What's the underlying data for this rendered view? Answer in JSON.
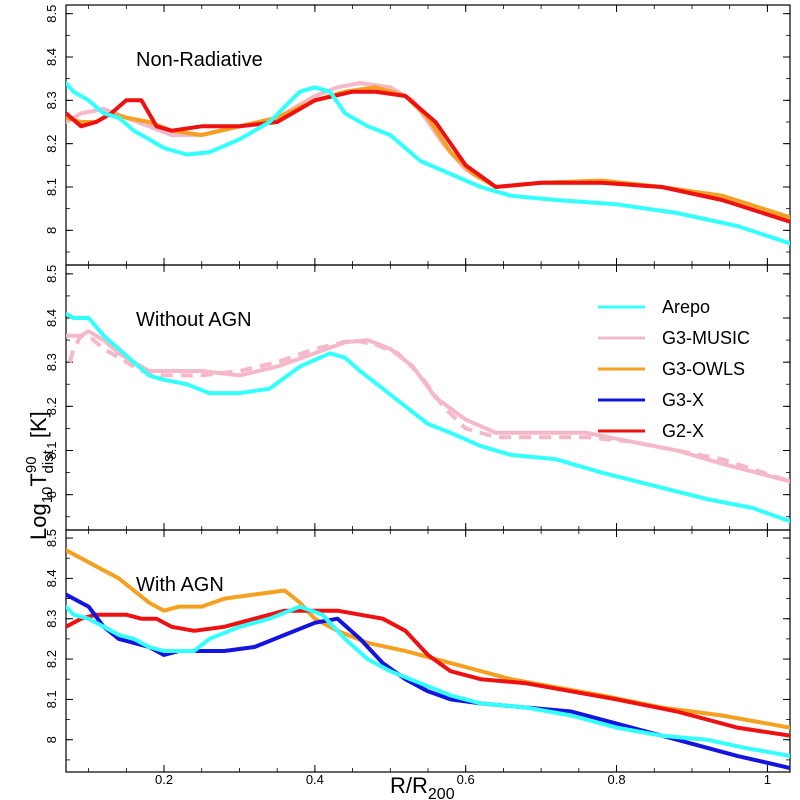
{
  "figure": {
    "xlabel_main": "R/R",
    "xlabel_sub": "200",
    "ylabel_main": "Log",
    "ylabel_sub1": "10",
    "ylabel_T": "T",
    "ylabel_sup": "90",
    "ylabel_sub2": "dist",
    "ylabel_unit": "[K]"
  },
  "legend": {
    "items": [
      {
        "name": "Arepo",
        "color": "#33ffff"
      },
      {
        "name": "G3-MUSIC",
        "color": "#f5b8c8"
      },
      {
        "name": "G3-OWLS",
        "color": "#f5a020"
      },
      {
        "name": "G3-X",
        "color": "#1414e0"
      },
      {
        "name": "G2-X",
        "color": "#ee1111"
      }
    ]
  },
  "chart_data": [
    {
      "type": "line",
      "title": "Non-Radiative",
      "xlabel": "R/R200",
      "ylabel": "Log10 T90dist [K]",
      "xlim": [
        0.07,
        1.03
      ],
      "ylim": [
        7.92,
        8.52
      ],
      "xticks": [
        0.2,
        0.4,
        0.6,
        0.8,
        1
      ],
      "xtick_labels": [
        "0.2",
        "0.4",
        "0.6",
        "0.8",
        "1"
      ],
      "yticks": [
        8,
        8.1,
        8.2,
        8.3,
        8.4,
        8.5
      ],
      "ytick_labels": [
        "8",
        "8.1",
        "8.2",
        "8.3",
        "8.4",
        "8.5"
      ],
      "series": [
        {
          "name": "G3-MUSIC",
          "color": "#f5b8c8",
          "x": [
            0.07,
            0.09,
            0.12,
            0.15,
            0.18,
            0.21,
            0.25,
            0.3,
            0.35,
            0.4,
            0.43,
            0.46,
            0.5,
            0.53,
            0.57,
            0.6,
            0.64,
            0.7,
            0.78,
            0.86,
            0.94,
            1.03
          ],
          "y": [
            8.25,
            8.27,
            8.28,
            8.26,
            8.24,
            8.22,
            8.22,
            8.24,
            8.26,
            8.31,
            8.33,
            8.34,
            8.33,
            8.3,
            8.2,
            8.14,
            8.1,
            8.11,
            8.11,
            8.1,
            8.07,
            8.03
          ]
        },
        {
          "name": "G3-OWLS",
          "color": "#f5a020",
          "x": [
            0.07,
            0.09,
            0.11,
            0.13,
            0.15,
            0.18,
            0.21,
            0.25,
            0.3,
            0.35,
            0.4,
            0.44,
            0.48,
            0.52,
            0.55,
            0.58,
            0.61,
            0.64,
            0.7,
            0.78,
            0.86,
            0.94,
            1.03
          ],
          "y": [
            8.26,
            8.25,
            8.25,
            8.27,
            8.26,
            8.25,
            8.23,
            8.22,
            8.24,
            8.26,
            8.3,
            8.32,
            8.33,
            8.31,
            8.26,
            8.18,
            8.13,
            8.1,
            8.11,
            8.115,
            8.1,
            8.08,
            8.03
          ]
        },
        {
          "name": "G2-X",
          "color": "#ee1111",
          "x": [
            0.07,
            0.09,
            0.11,
            0.13,
            0.15,
            0.17,
            0.19,
            0.21,
            0.25,
            0.3,
            0.35,
            0.4,
            0.45,
            0.48,
            0.52,
            0.56,
            0.6,
            0.64,
            0.7,
            0.78,
            0.86,
            0.94,
            1.03
          ],
          "y": [
            8.27,
            8.24,
            8.25,
            8.27,
            8.3,
            8.3,
            8.24,
            8.23,
            8.24,
            8.24,
            8.25,
            8.3,
            8.32,
            8.32,
            8.31,
            8.25,
            8.15,
            8.1,
            8.11,
            8.11,
            8.1,
            8.07,
            8.02
          ]
        },
        {
          "name": "Arepo",
          "color": "#33ffff",
          "x": [
            0.07,
            0.08,
            0.1,
            0.12,
            0.14,
            0.16,
            0.18,
            0.2,
            0.23,
            0.26,
            0.3,
            0.34,
            0.38,
            0.4,
            0.42,
            0.44,
            0.47,
            0.5,
            0.54,
            0.58,
            0.62,
            0.66,
            0.72,
            0.8,
            0.88,
            0.96,
            1.03
          ],
          "y": [
            8.34,
            8.32,
            8.3,
            8.27,
            8.26,
            8.23,
            8.21,
            8.19,
            8.175,
            8.18,
            8.21,
            8.25,
            8.32,
            8.33,
            8.32,
            8.27,
            8.24,
            8.22,
            8.16,
            8.13,
            8.1,
            8.08,
            8.07,
            8.06,
            8.04,
            8.01,
            7.97
          ]
        }
      ]
    },
    {
      "type": "line",
      "title": "Without AGN",
      "xlabel": "R/R200",
      "ylabel": "Log10 T90dist [K]",
      "xlim": [
        0.07,
        1.03
      ],
      "ylim": [
        7.92,
        8.52
      ],
      "xticks": [
        0.2,
        0.4,
        0.6,
        0.8,
        1
      ],
      "xtick_labels": [
        "0.2",
        "0.4",
        "0.6",
        "0.8",
        "1"
      ],
      "yticks": [
        8,
        8.1,
        8.2,
        8.3,
        8.4,
        8.5
      ],
      "ytick_labels": [
        "8",
        "8.1",
        "8.2",
        "8.3",
        "8.4",
        "8.5"
      ],
      "series": [
        {
          "name": "G3-MUSIC",
          "color": "#f5b8c8",
          "x": [
            0.07,
            0.09,
            0.1,
            0.12,
            0.14,
            0.16,
            0.18,
            0.2,
            0.25,
            0.3,
            0.35,
            0.4,
            0.44,
            0.47,
            0.5,
            0.53,
            0.56,
            0.6,
            0.64,
            0.7,
            0.76,
            0.82,
            0.88,
            0.94,
            1.03
          ],
          "y": [
            8.36,
            8.36,
            8.37,
            8.35,
            8.32,
            8.3,
            8.28,
            8.28,
            8.28,
            8.27,
            8.29,
            8.32,
            8.345,
            8.35,
            8.33,
            8.29,
            8.22,
            8.17,
            8.14,
            8.14,
            8.14,
            8.12,
            8.1,
            8.07,
            8.03
          ]
        },
        {
          "name": "G3-MUSIC (dashed)",
          "color": "#f5b8c8",
          "x": [
            0.075,
            0.08,
            0.09,
            0.1,
            0.12,
            0.14,
            0.17,
            0.2,
            0.25,
            0.3,
            0.35,
            0.4,
            0.45,
            0.48,
            0.51,
            0.54,
            0.57,
            0.6,
            0.64,
            0.7,
            0.76,
            0.82,
            0.88,
            0.94,
            1.03
          ],
          "y": [
            8.3,
            8.33,
            8.36,
            8.36,
            8.33,
            8.31,
            8.28,
            8.27,
            8.27,
            8.28,
            8.3,
            8.33,
            8.35,
            8.34,
            8.32,
            8.27,
            8.2,
            8.15,
            8.13,
            8.13,
            8.13,
            8.12,
            8.1,
            8.08,
            8.03
          ]
        },
        {
          "name": "Arepo",
          "color": "#33ffff",
          "x": [
            0.07,
            0.08,
            0.09,
            0.1,
            0.11,
            0.12,
            0.14,
            0.16,
            0.18,
            0.2,
            0.23,
            0.26,
            0.3,
            0.34,
            0.38,
            0.42,
            0.44,
            0.46,
            0.49,
            0.52,
            0.55,
            0.58,
            0.62,
            0.66,
            0.72,
            0.78,
            0.85,
            0.92,
            0.98,
            1.03
          ],
          "y": [
            8.41,
            8.4,
            8.4,
            8.4,
            8.38,
            8.36,
            8.33,
            8.3,
            8.27,
            8.26,
            8.25,
            8.23,
            8.23,
            8.24,
            8.29,
            8.32,
            8.31,
            8.28,
            8.24,
            8.2,
            8.16,
            8.14,
            8.11,
            8.09,
            8.08,
            8.05,
            8.02,
            7.99,
            7.97,
            7.94
          ]
        }
      ]
    },
    {
      "type": "line",
      "title": "With AGN",
      "xlabel": "R/R200",
      "ylabel": "Log10 T90dist [K]",
      "xlim": [
        0.07,
        1.03
      ],
      "ylim": [
        7.92,
        8.52
      ],
      "xticks": [
        0.2,
        0.4,
        0.6,
        0.8,
        1
      ],
      "xtick_labels": [
        "0.2",
        "0.4",
        "0.6",
        "0.8",
        "1"
      ],
      "yticks": [
        8,
        8.1,
        8.2,
        8.3,
        8.4,
        8.5
      ],
      "ytick_labels": [
        "8",
        "8.1",
        "8.2",
        "8.3",
        "8.4",
        "8.5"
      ],
      "series": [
        {
          "name": "G3-OWLS",
          "color": "#f5a020",
          "x": [
            0.07,
            0.08,
            0.1,
            0.12,
            0.14,
            0.16,
            0.18,
            0.2,
            0.22,
            0.25,
            0.28,
            0.32,
            0.36,
            0.38,
            0.4,
            0.43,
            0.47,
            0.52,
            0.56,
            0.6,
            0.66,
            0.72,
            0.78,
            0.86,
            0.94,
            1.03
          ],
          "y": [
            8.47,
            8.46,
            8.44,
            8.42,
            8.4,
            8.37,
            8.34,
            8.32,
            8.33,
            8.33,
            8.35,
            8.36,
            8.37,
            8.34,
            8.3,
            8.27,
            8.24,
            8.22,
            8.2,
            8.18,
            8.15,
            8.13,
            8.11,
            8.08,
            8.06,
            8.03
          ]
        },
        {
          "name": "G2-X",
          "color": "#ee1111",
          "x": [
            0.07,
            0.09,
            0.11,
            0.13,
            0.15,
            0.17,
            0.19,
            0.21,
            0.24,
            0.28,
            0.32,
            0.36,
            0.4,
            0.43,
            0.46,
            0.49,
            0.52,
            0.55,
            0.58,
            0.62,
            0.68,
            0.74,
            0.8,
            0.88,
            0.96,
            1.03
          ],
          "y": [
            8.28,
            8.3,
            8.31,
            8.31,
            8.31,
            8.3,
            8.3,
            8.28,
            8.27,
            8.28,
            8.3,
            8.32,
            8.32,
            8.32,
            8.31,
            8.3,
            8.27,
            8.21,
            8.17,
            8.15,
            8.14,
            8.12,
            8.1,
            8.07,
            8.03,
            8.01
          ]
        },
        {
          "name": "G3-X",
          "color": "#1414e0",
          "x": [
            0.07,
            0.08,
            0.1,
            0.12,
            0.14,
            0.16,
            0.18,
            0.2,
            0.22,
            0.25,
            0.28,
            0.32,
            0.36,
            0.4,
            0.43,
            0.46,
            0.49,
            0.52,
            0.55,
            0.58,
            0.62,
            0.68,
            0.74,
            0.8,
            0.88,
            0.96,
            1.03
          ],
          "y": [
            8.36,
            8.35,
            8.33,
            8.28,
            8.25,
            8.24,
            8.23,
            8.21,
            8.22,
            8.22,
            8.22,
            8.23,
            8.26,
            8.29,
            8.3,
            8.25,
            8.19,
            8.15,
            8.12,
            8.1,
            8.09,
            8.08,
            8.07,
            8.04,
            8.0,
            7.96,
            7.93
          ]
        },
        {
          "name": "Arepo",
          "color": "#33ffff",
          "x": [
            0.07,
            0.08,
            0.1,
            0.12,
            0.14,
            0.16,
            0.18,
            0.2,
            0.22,
            0.24,
            0.26,
            0.3,
            0.34,
            0.38,
            0.41,
            0.44,
            0.47,
            0.5,
            0.54,
            0.58,
            0.62,
            0.68,
            0.74,
            0.8,
            0.86,
            0.92,
            0.97,
            1.03
          ],
          "y": [
            8.33,
            8.31,
            8.3,
            8.28,
            8.26,
            8.25,
            8.23,
            8.22,
            8.22,
            8.22,
            8.25,
            8.28,
            8.3,
            8.33,
            8.31,
            8.25,
            8.2,
            8.17,
            8.14,
            8.11,
            8.09,
            8.08,
            8.06,
            8.03,
            8.01,
            8.0,
            7.98,
            7.96
          ]
        }
      ]
    }
  ]
}
